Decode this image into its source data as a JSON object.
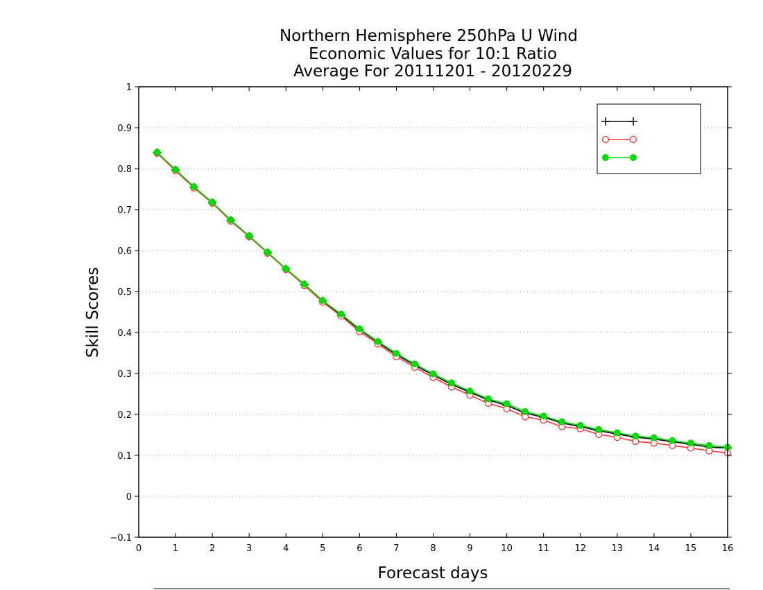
{
  "chart_data": {
    "type": "line",
    "title": [
      "Northern Hemisphere 250hPa U Wind",
      "Economic Values for 10:1 Ratio",
      "Average For 20111201 - 20120229"
    ],
    "xlabel": "Forecast days",
    "ylabel": "Skill Scores",
    "xlim": [
      0,
      16
    ],
    "ylim": [
      -0.1,
      1
    ],
    "xticks": [
      "0",
      "1",
      "2",
      "3",
      "4",
      "5",
      "6",
      "7",
      "8",
      "9",
      "10",
      "11",
      "12",
      "13",
      "14",
      "15",
      "16"
    ],
    "yticks": [
      "−0.1",
      "0",
      "0.1",
      "0.2",
      "0.3",
      "0.4",
      "0.5",
      "0.6",
      "0.7",
      "0.8",
      "0.9",
      "1"
    ],
    "grid": "horizontal dotted",
    "legend_position": "top-right",
    "x": [
      0.5,
      1,
      1.5,
      2,
      2.5,
      3,
      3.5,
      4,
      4.5,
      5,
      5.5,
      6,
      6.5,
      7,
      7.5,
      8,
      8.5,
      9,
      9.5,
      10,
      10.5,
      11,
      11.5,
      12,
      12.5,
      13,
      13.5,
      14,
      14.5,
      15,
      15.5,
      16
    ],
    "series": [
      {
        "name": "",
        "color": "#000000",
        "marker": "plus",
        "values": [
          0.839,
          0.797,
          0.755,
          0.717,
          0.674,
          0.635,
          0.595,
          0.555,
          0.517,
          0.477,
          0.443,
          0.407,
          0.376,
          0.346,
          0.32,
          0.296,
          0.273,
          0.254,
          0.235,
          0.222,
          0.203,
          0.193,
          0.179,
          0.17,
          0.16,
          0.152,
          0.144,
          0.14,
          0.133,
          0.127,
          0.12,
          0.118
        ]
      },
      {
        "name": "",
        "color": "#ff3333",
        "marker": "open-circle",
        "values": [
          0.838,
          0.795,
          0.753,
          0.716,
          0.672,
          0.634,
          0.594,
          0.554,
          0.515,
          0.474,
          0.44,
          0.402,
          0.372,
          0.341,
          0.315,
          0.29,
          0.267,
          0.247,
          0.227,
          0.214,
          0.194,
          0.186,
          0.17,
          0.165,
          0.151,
          0.144,
          0.134,
          0.13,
          0.124,
          0.118,
          0.111,
          0.106
        ]
      },
      {
        "name": "",
        "color": "#00dd00",
        "marker": "filled-circle",
        "values": [
          0.84,
          0.798,
          0.756,
          0.718,
          0.675,
          0.636,
          0.596,
          0.556,
          0.518,
          0.478,
          0.445,
          0.409,
          0.378,
          0.349,
          0.323,
          0.299,
          0.277,
          0.257,
          0.238,
          0.226,
          0.207,
          0.196,
          0.182,
          0.173,
          0.163,
          0.155,
          0.147,
          0.143,
          0.136,
          0.13,
          0.124,
          0.12
        ]
      }
    ]
  }
}
